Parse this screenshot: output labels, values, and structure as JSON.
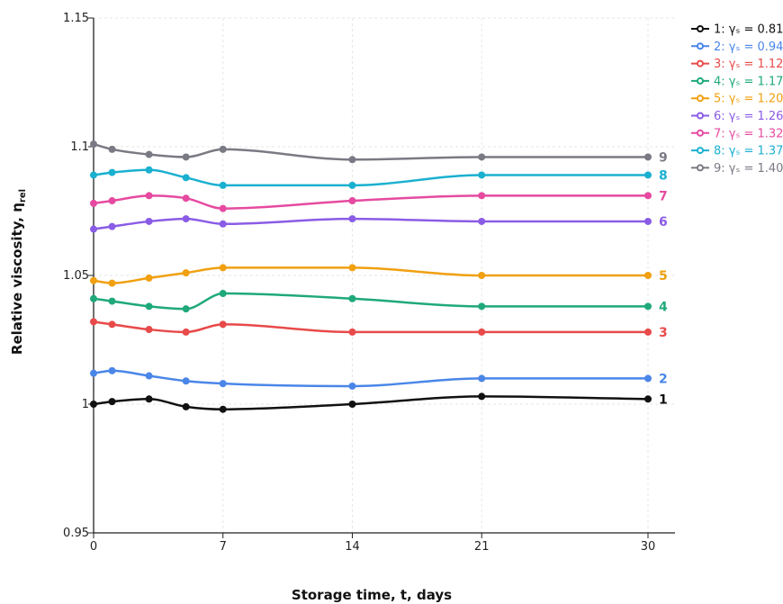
{
  "chart_data": {
    "type": "line",
    "title": "",
    "xlabel": "Storage time, t, days",
    "ylabel": "Relative viscosity, η",
    "ylabel_sub": "rel",
    "x_ticks": [
      "0",
      "7",
      "14",
      "21",
      "30"
    ],
    "y_ticks": [
      "0.95",
      "1",
      "1.05",
      "1.1",
      "1.15"
    ],
    "xlim": [
      0,
      30
    ],
    "ylim": [
      0.95,
      1.15
    ],
    "grid": true,
    "legend_position": "top-right",
    "x": [
      0,
      1,
      3,
      5,
      7,
      14,
      21,
      30
    ],
    "series": [
      {
        "label": "1",
        "legend": "1: γₛ = 0.81",
        "color": "#111111",
        "values": [
          1.0,
          1.001,
          1.002,
          0.999,
          0.998,
          1.0,
          1.003,
          1.002
        ]
      },
      {
        "label": "2",
        "legend": "2: γₛ = 0.94",
        "color": "#4a86e8",
        "values": [
          1.012,
          1.013,
          1.011,
          1.009,
          1.008,
          1.007,
          1.01,
          1.01
        ]
      },
      {
        "label": "3",
        "legend": "3: γₛ = 1.12",
        "color": "#e84a4a",
        "values": [
          1.032,
          1.031,
          1.029,
          1.028,
          1.031,
          1.028,
          1.028,
          1.028
        ]
      },
      {
        "label": "4",
        "legend": "4: γₛ = 1.17",
        "color": "#1fa97a",
        "values": [
          1.041,
          1.04,
          1.038,
          1.037,
          1.043,
          1.041,
          1.038,
          1.038
        ]
      },
      {
        "label": "5",
        "legend": "5: γₛ = 1.20",
        "color": "#f0a010",
        "values": [
          1.048,
          1.047,
          1.049,
          1.051,
          1.053,
          1.053,
          1.05,
          1.05
        ]
      },
      {
        "label": "6",
        "legend": "6: γₛ = 1.26",
        "color": "#8a5ce6",
        "values": [
          1.068,
          1.069,
          1.071,
          1.072,
          1.07,
          1.072,
          1.071,
          1.071
        ]
      },
      {
        "label": "7",
        "legend": "7: γₛ = 1.32",
        "color": "#e64aa0",
        "values": [
          1.078,
          1.079,
          1.081,
          1.08,
          1.076,
          1.079,
          1.081,
          1.081
        ]
      },
      {
        "label": "8",
        "legend": "8: γₛ = 1.37",
        "color": "#1ab0d0",
        "values": [
          1.089,
          1.09,
          1.091,
          1.088,
          1.085,
          1.085,
          1.089,
          1.089
        ]
      },
      {
        "label": "9",
        "legend": "9: γₛ = 1.40",
        "color": "#7a7a84",
        "values": [
          1.101,
          1.099,
          1.097,
          1.096,
          1.099,
          1.095,
          1.096,
          1.096
        ]
      }
    ]
  }
}
